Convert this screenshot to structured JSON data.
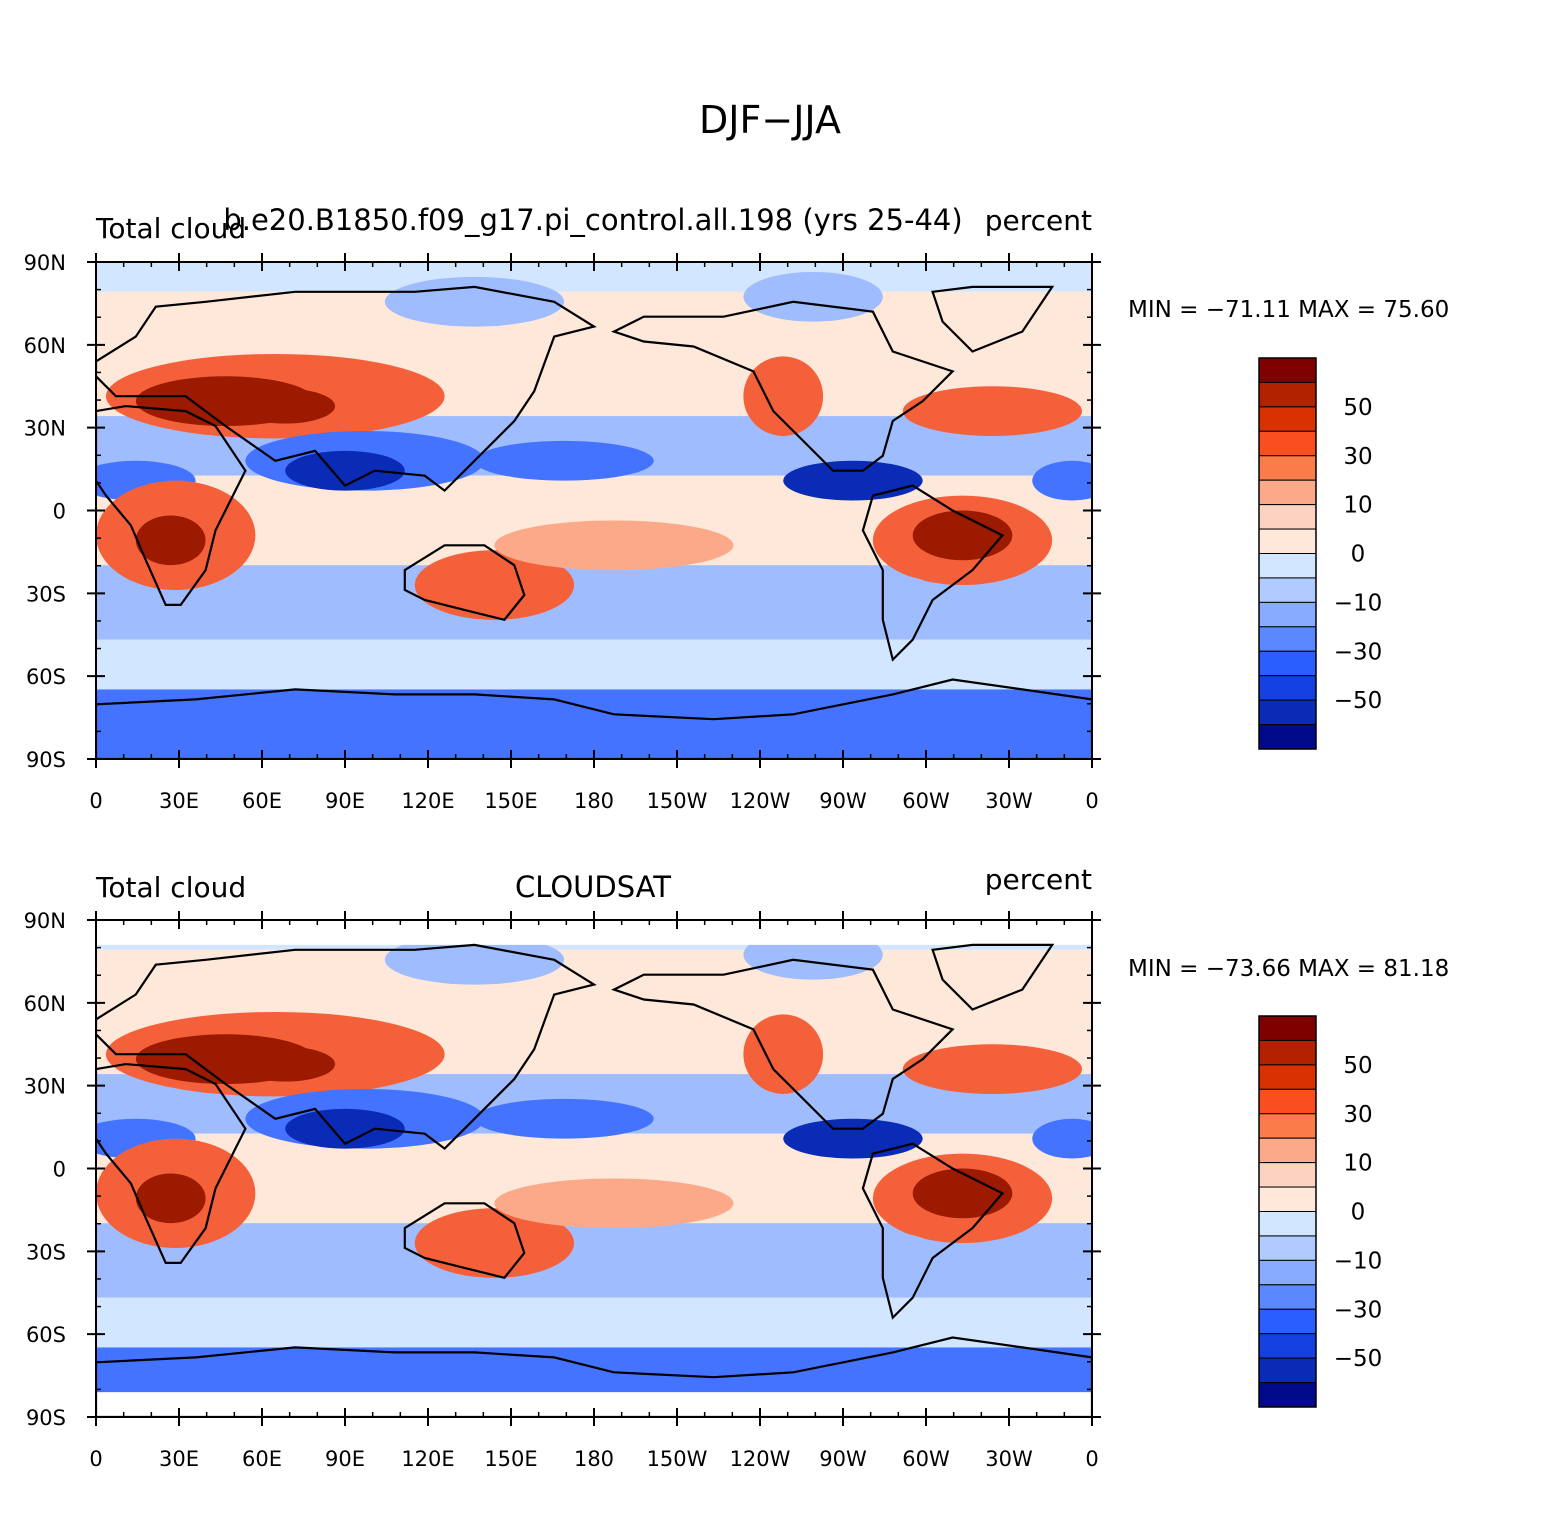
{
  "figure": {
    "title": "DJF−JJA"
  },
  "panels": [
    {
      "left_title": "Total cloud",
      "center_title": "b.e20.B1850.f09_g17.pi_control.all.198 (yrs 25-44)",
      "right_title": "percent",
      "min_max_text": "MIN = −71.11 MAX =  75.60",
      "lat_ticks": [
        "90N",
        "60N",
        "30N",
        "0",
        "30S",
        "60S",
        "90S"
      ],
      "lon_ticks": [
        "0",
        "30E",
        "60E",
        "90E",
        "120E",
        "150E",
        "180",
        "150W",
        "120W",
        "90W",
        "60W",
        "30W",
        "0"
      ],
      "colorbar_labels": [
        "50",
        "30",
        "10",
        "0",
        "−10",
        "−30",
        "−50"
      ]
    },
    {
      "left_title": "Total cloud",
      "center_title": "CLOUDSAT",
      "right_title": "percent",
      "min_max_text": "MIN = −73.66 MAX =  81.18",
      "lat_ticks": [
        "90N",
        "60N",
        "30N",
        "0",
        "30S",
        "60S",
        "90S"
      ],
      "lon_ticks": [
        "0",
        "30E",
        "60E",
        "90E",
        "120E",
        "150E",
        "180",
        "150W",
        "120W",
        "90W",
        "60W",
        "30W",
        "0"
      ],
      "colorbar_labels": [
        "50",
        "30",
        "10",
        "0",
        "−10",
        "−30",
        "−50"
      ]
    }
  ],
  "colorbar": {
    "colors": [
      "#800000",
      "#b22200",
      "#d93200",
      "#fb4e1f",
      "#fb7c4b",
      "#fca98a",
      "#fcd2c0",
      "#fde8da",
      "#d3e6ff",
      "#b0cbff",
      "#88aaff",
      "#5a88ff",
      "#2b5eff",
      "#1540e0",
      "#0a2bb5",
      "#000a8a"
    ]
  },
  "map_colors": {
    "strong_pos": "#9b1a00",
    "pos": "#f4603a",
    "weak_pos": "#fca98a",
    "faint_pos": "#fde8da",
    "faint_neg": "#d3e6ff",
    "weak_neg": "#9fbcff",
    "neg": "#4474ff",
    "strong_neg": "#0a2bb5",
    "coast": "#000000"
  }
}
